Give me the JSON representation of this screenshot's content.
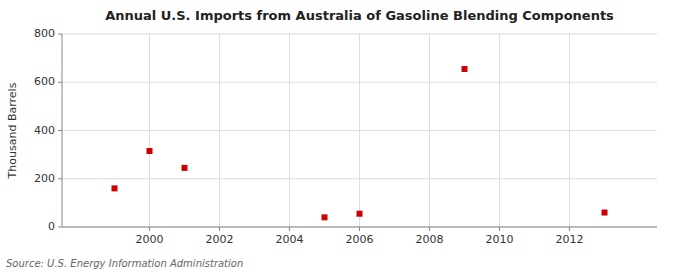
{
  "chart_data": {
    "type": "scatter",
    "title": "Annual U.S. Imports from Australia of Gasoline Blending Components",
    "ylabel": "Thousand Barrels",
    "source": "Source: U.S. Energy Information Administration",
    "x": [
      1999,
      2000,
      2001,
      2005,
      2006,
      2009,
      2013
    ],
    "values": [
      160,
      315,
      245,
      40,
      55,
      655,
      60
    ],
    "color": "#cc0000",
    "marker": "square",
    "xlim": [
      1997.5,
      2014.5
    ],
    "ylim": [
      0,
      800
    ],
    "xticks": [
      2000,
      2002,
      2004,
      2006,
      2008,
      2010,
      2012
    ],
    "yticks": [
      0,
      200,
      400,
      600,
      800
    ],
    "grid": true
  }
}
